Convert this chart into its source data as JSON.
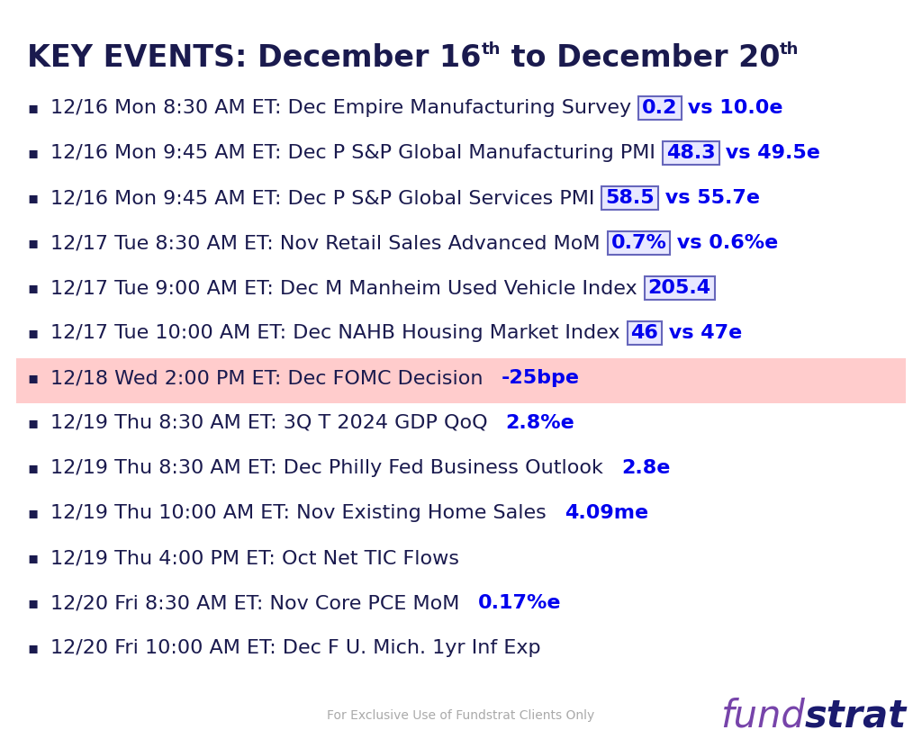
{
  "title_color": "#1a1a4e",
  "title_fontsize": 24,
  "bg_color": "#ffffff",
  "items": [
    {
      "text": "12/16 Mon 8:30 AM ET: Dec Empire Manufacturing Survey",
      "value": "0.2",
      "value_has_box": true,
      "suffix": " vs 10.0e",
      "highlight": false
    },
    {
      "text": "12/16 Mon 9:45 AM ET: Dec P S&P Global Manufacturing PMI",
      "value": "48.3",
      "value_has_box": true,
      "suffix": " vs 49.5e",
      "highlight": false
    },
    {
      "text": "12/16 Mon 9:45 AM ET: Dec P S&P Global Services PMI",
      "value": "58.5",
      "value_has_box": true,
      "suffix": " vs 55.7e",
      "highlight": false
    },
    {
      "text": "12/17 Tue 8:30 AM ET: Nov Retail Sales Advanced MoM",
      "value": "0.7%",
      "value_has_box": true,
      "suffix": " vs 0.6%e",
      "highlight": false
    },
    {
      "text": "12/17 Tue 9:00 AM ET: Dec M Manheim Used Vehicle Index",
      "value": "205.4",
      "value_has_box": true,
      "suffix": "",
      "highlight": false
    },
    {
      "text": "12/17 Tue 10:00 AM ET: Dec NAHB Housing Market Index",
      "value": "46",
      "value_has_box": true,
      "suffix": " vs 47e",
      "highlight": false
    },
    {
      "text": "12/18 Wed 2:00 PM ET: Dec FOMC Decision",
      "value": "-25bpe",
      "value_has_box": false,
      "suffix": "",
      "highlight": true
    },
    {
      "text": "12/19 Thu 8:30 AM ET: 3Q T 2024 GDP QoQ",
      "value": "2.8%e",
      "value_has_box": false,
      "suffix": "",
      "highlight": false
    },
    {
      "text": "12/19 Thu 8:30 AM ET: Dec Philly Fed Business Outlook",
      "value": "2.8e",
      "value_has_box": false,
      "suffix": "",
      "highlight": false
    },
    {
      "text": "12/19 Thu 10:00 AM ET: Nov Existing Home Sales",
      "value": "4.09me",
      "value_has_box": false,
      "suffix": "",
      "highlight": false
    },
    {
      "text": "12/19 Thu 4:00 PM ET: Oct Net TIC Flows",
      "value": "",
      "value_has_box": false,
      "suffix": "",
      "highlight": false
    },
    {
      "text": "12/20 Fri 8:30 AM ET: Nov Core PCE MoM",
      "value": "0.17%e",
      "value_has_box": false,
      "suffix": "",
      "highlight": false
    },
    {
      "text": "12/20 Fri 10:00 AM ET: Dec F U. Mich. 1yr Inf Exp",
      "value": "",
      "value_has_box": false,
      "suffix": "",
      "highlight": false
    }
  ],
  "text_color_dark": "#1a1a4e",
  "text_color_blue": "#0000ee",
  "highlight_bg": "#ffcccc",
  "box_border_color": "#6666bb",
  "box_fill_color": "#e8e8ff",
  "item_fontsize": 16,
  "value_fontsize": 16,
  "disclaimer": "For Exclusive Use of Fundstrat Clients Only",
  "disclaimer_color": "#aaaaaa",
  "fundstrat_italic_color": "#7744aa",
  "fundstrat_bold_color": "#1a1a6e",
  "bullet_color": "#1a1a4e"
}
